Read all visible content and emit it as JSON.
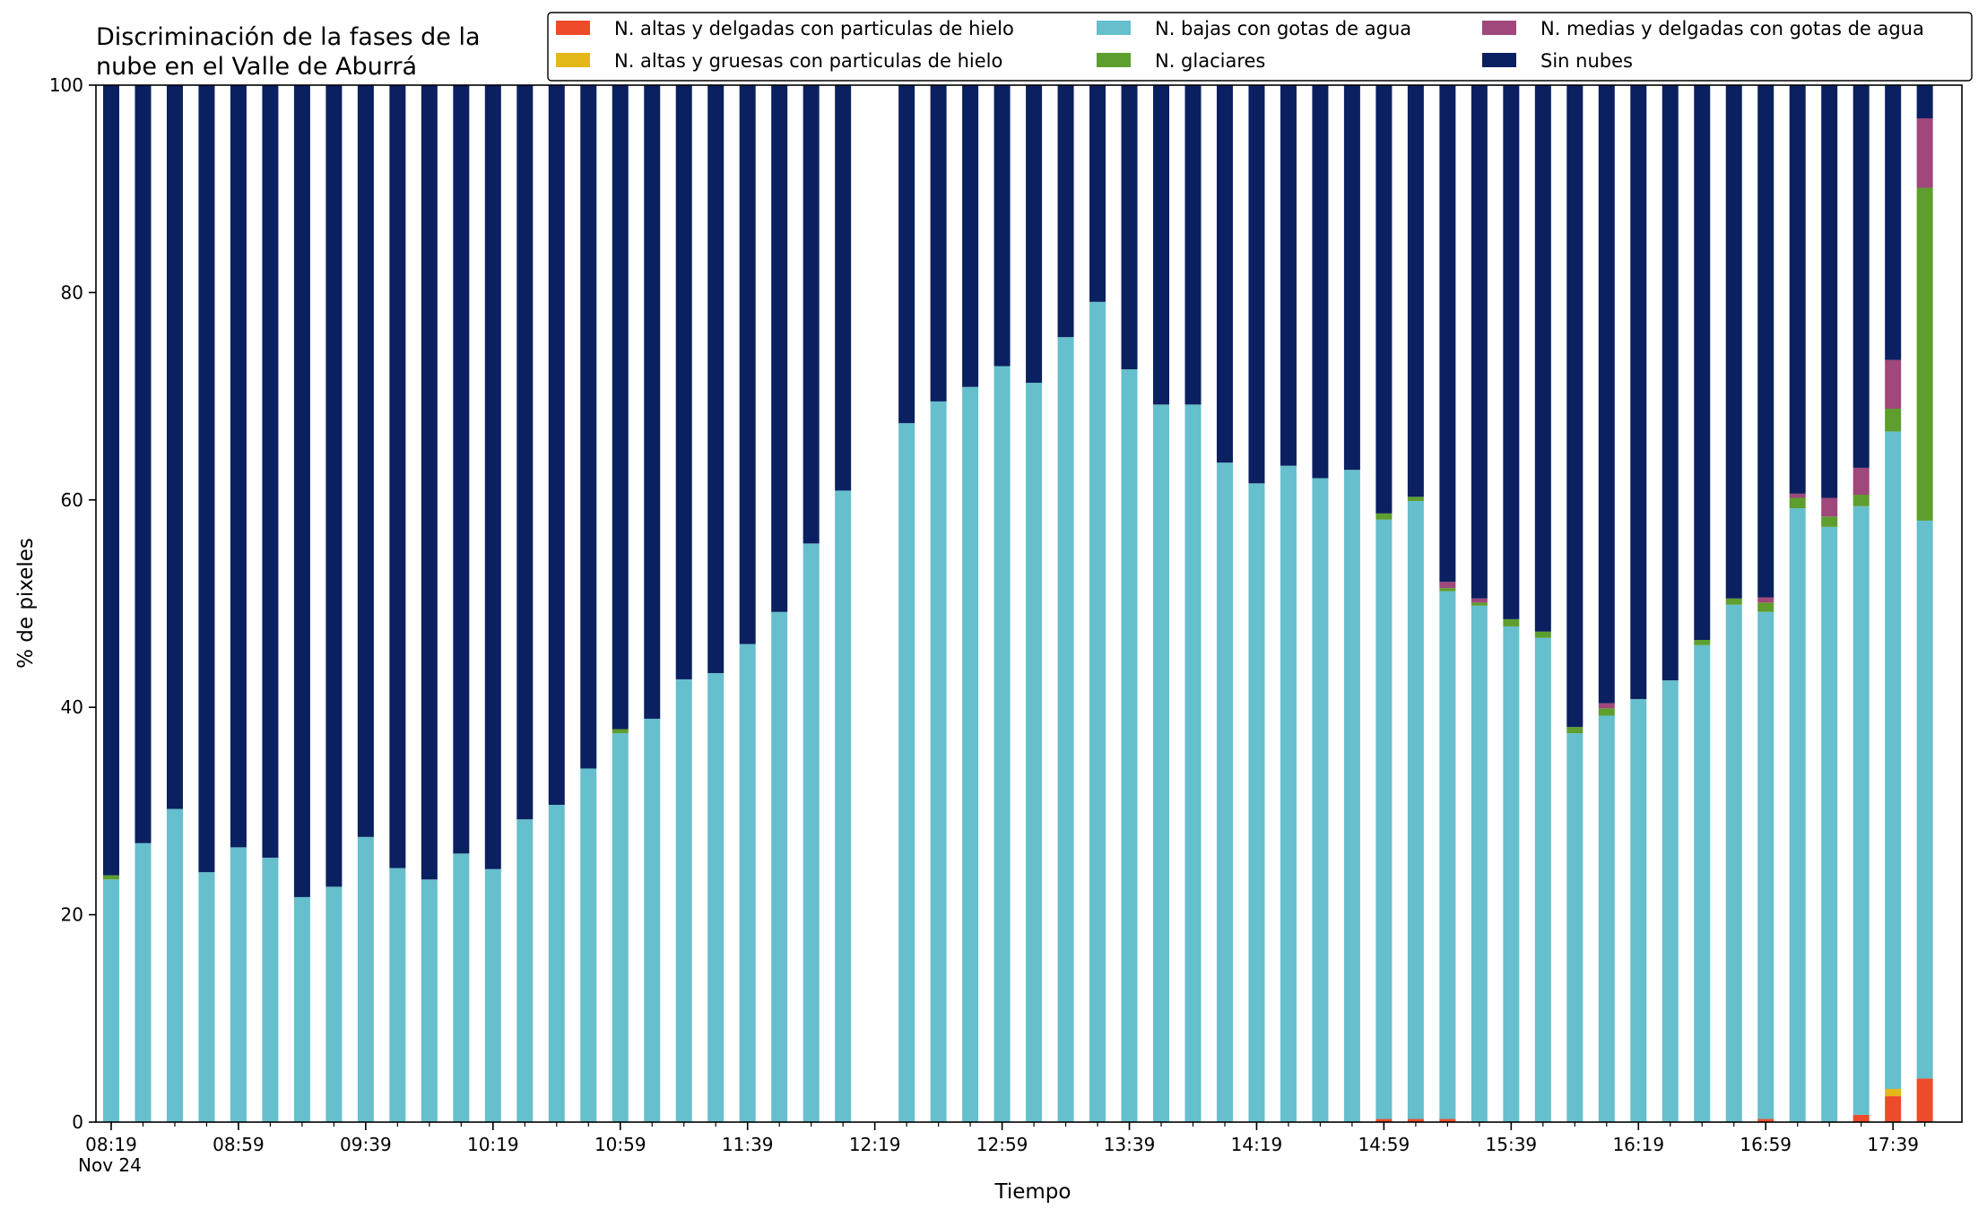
{
  "chart_data": {
    "type": "bar",
    "stacked": true,
    "title_lines": [
      "Discriminación de la fases de la",
      "nube en el Valle de Aburrá"
    ],
    "xlabel": "Tiempo",
    "ylabel": "% de pixeles",
    "ylim": [
      0,
      100
    ],
    "yticks": [
      "0",
      "20",
      "40",
      "60",
      "80",
      "100"
    ],
    "xtick_labels": [
      "08:19",
      "08:59",
      "09:39",
      "10:19",
      "10:59",
      "11:39",
      "12:19",
      "12:59",
      "13:39",
      "14:19",
      "14:59",
      "15:39",
      "16:19",
      "16:59",
      "17:39"
    ],
    "date_label": "Nov 24",
    "grid": false,
    "legend_position": "top-right",
    "series": [
      {
        "name": "N. altas y delgadas con particulas de hielo",
        "color": "#ee4b2b",
        "values": [
          0,
          0,
          0,
          0,
          0,
          0,
          0,
          0,
          0,
          0,
          0,
          0,
          0,
          0,
          0,
          0,
          0,
          0,
          0,
          0,
          0,
          0,
          0,
          0,
          0,
          0,
          0,
          0,
          0,
          0,
          0,
          0,
          0,
          0,
          0,
          0,
          0,
          0,
          0,
          0,
          0.3,
          0.3,
          0.3,
          0,
          0,
          0,
          0,
          0,
          0,
          0,
          0,
          0,
          0.3,
          0,
          0,
          0.7,
          2.5,
          4.2
        ]
      },
      {
        "name": "N. altas y gruesas con particulas de hielo",
        "color": "#e5b81a",
        "values": [
          0,
          0,
          0,
          0,
          0,
          0,
          0,
          0,
          0,
          0,
          0,
          0,
          0,
          0,
          0,
          0,
          0,
          0,
          0,
          0,
          0,
          0,
          0,
          0,
          0,
          0,
          0,
          0,
          0,
          0,
          0,
          0,
          0,
          0,
          0,
          0,
          0,
          0,
          0,
          0,
          0,
          0,
          0,
          0,
          0,
          0,
          0,
          0,
          0,
          0,
          0,
          0,
          0,
          0,
          0,
          0,
          0.7,
          0
        ]
      },
      {
        "name": "N. bajas con gotas de agua",
        "color": "#66bfcc",
        "values": [
          23.4,
          26.9,
          30.2,
          24.1,
          26.5,
          25.5,
          21.7,
          22.7,
          27.5,
          24.5,
          23.4,
          25.9,
          24.4,
          29.2,
          30.6,
          34.1,
          37.5,
          38.9,
          42.7,
          43.3,
          46.1,
          49.2,
          55.8,
          60.9,
          null,
          67.4,
          69.5,
          70.9,
          72.9,
          71.3,
          75.7,
          79.1,
          72.6,
          69.2,
          69.2,
          63.6,
          61.6,
          63.3,
          62.1,
          62.9,
          57.8,
          59.6,
          50.9,
          49.8,
          47.8,
          46.7,
          37.5,
          39.2,
          40.8,
          42.6,
          46.0,
          49.9,
          48.9,
          59.2,
          57.4,
          58.7,
          63.4,
          53.8
        ]
      },
      {
        "name": "N. glaciares",
        "color": "#5d9e2e",
        "values": [
          0.4,
          0,
          0,
          0,
          0,
          0,
          0,
          0,
          0,
          0,
          0,
          0,
          0,
          0,
          0,
          0,
          0.4,
          0,
          0,
          0,
          0,
          0,
          0,
          0,
          0,
          0,
          0,
          0,
          0,
          0,
          0,
          0,
          0,
          0,
          0,
          0,
          0,
          0,
          0,
          0,
          0.6,
          0.4,
          0.3,
          0.3,
          0.7,
          0.6,
          0.6,
          0.7,
          0,
          0,
          0.5,
          0.6,
          0.9,
          1.0,
          1.0,
          1.1,
          2.2,
          32.1
        ]
      },
      {
        "name": "N. medias y delgadas con gotas de agua",
        "color": "#a0477b",
        "values": [
          0,
          0,
          0,
          0,
          0,
          0,
          0,
          0,
          0,
          0,
          0,
          0,
          0,
          0,
          0,
          0,
          0,
          0,
          0,
          0,
          0,
          0,
          0,
          0,
          0,
          0,
          0,
          0,
          0,
          0,
          0,
          0,
          0,
          0,
          0,
          0,
          0,
          0,
          0,
          0,
          0,
          0,
          0.6,
          0.4,
          0,
          0,
          0,
          0.5,
          0,
          0,
          0,
          0,
          0.5,
          0.4,
          1.8,
          2.6,
          4.7,
          6.7
        ]
      },
      {
        "name": "Sin nubes",
        "color": "#0b2060",
        "values": [
          76.2,
          73.1,
          69.8,
          75.9,
          73.5,
          74.5,
          78.3,
          77.3,
          72.5,
          75.5,
          76.6,
          74.1,
          75.6,
          70.8,
          69.4,
          65.9,
          62.1,
          61.1,
          57.3,
          56.7,
          53.9,
          50.8,
          44.2,
          39.1,
          null,
          32.6,
          30.5,
          29.1,
          27.1,
          28.7,
          24.3,
          20.9,
          27.4,
          30.8,
          30.8,
          36.4,
          38.4,
          36.7,
          37.9,
          37.1,
          41.3,
          39.7,
          47.9,
          49.5,
          51.5,
          52.7,
          61.9,
          59.6,
          59.2,
          57.4,
          53.5,
          49.5,
          49.4,
          39.4,
          39.8,
          36.9,
          26.5,
          3.2
        ]
      }
    ]
  }
}
